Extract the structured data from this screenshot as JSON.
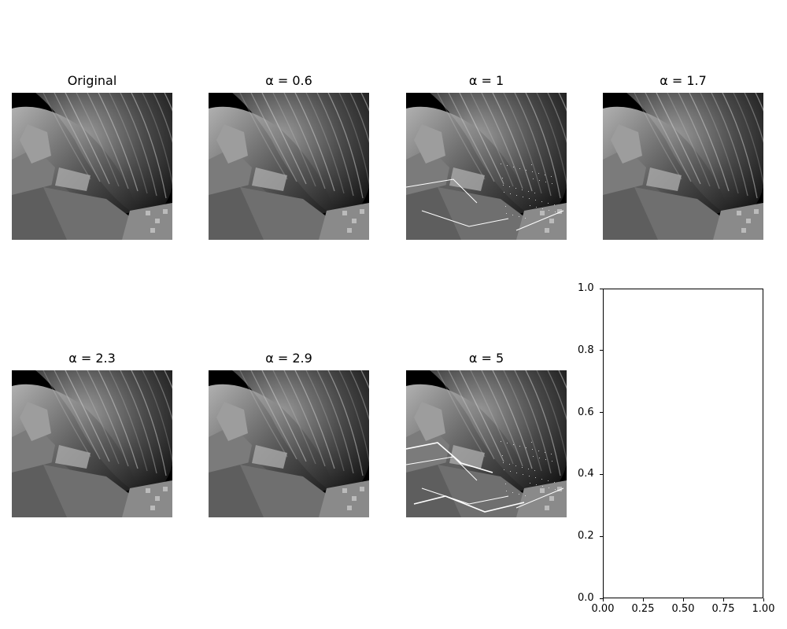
{
  "figure": {
    "panels": [
      {
        "title": "Original",
        "alpha": null,
        "artifacts": 0
      },
      {
        "title": "α = 0.6",
        "alpha": 0.6,
        "artifacts": 0
      },
      {
        "title": "α = 1",
        "alpha": 1,
        "artifacts": 2
      },
      {
        "title": "α = 1.7",
        "alpha": 1.7,
        "artifacts": 0
      },
      {
        "title": "α = 2.3",
        "alpha": 2.3,
        "artifacts": 0
      },
      {
        "title": "α = 2.9",
        "alpha": 2.9,
        "artifacts": 0
      },
      {
        "title": "α = 5",
        "alpha": 5,
        "artifacts": 3
      }
    ]
  },
  "chart_data": {
    "type": "image-grid",
    "title": "",
    "empty_axes": {
      "xlim": [
        0.0,
        1.0
      ],
      "ylim": [
        0.0,
        1.0
      ],
      "xticks": [
        "0.00",
        "0.25",
        "0.50",
        "0.75",
        "1.00"
      ],
      "yticks": [
        "0.0",
        "0.2",
        "0.4",
        "0.6",
        "0.8",
        "1.0"
      ]
    }
  }
}
